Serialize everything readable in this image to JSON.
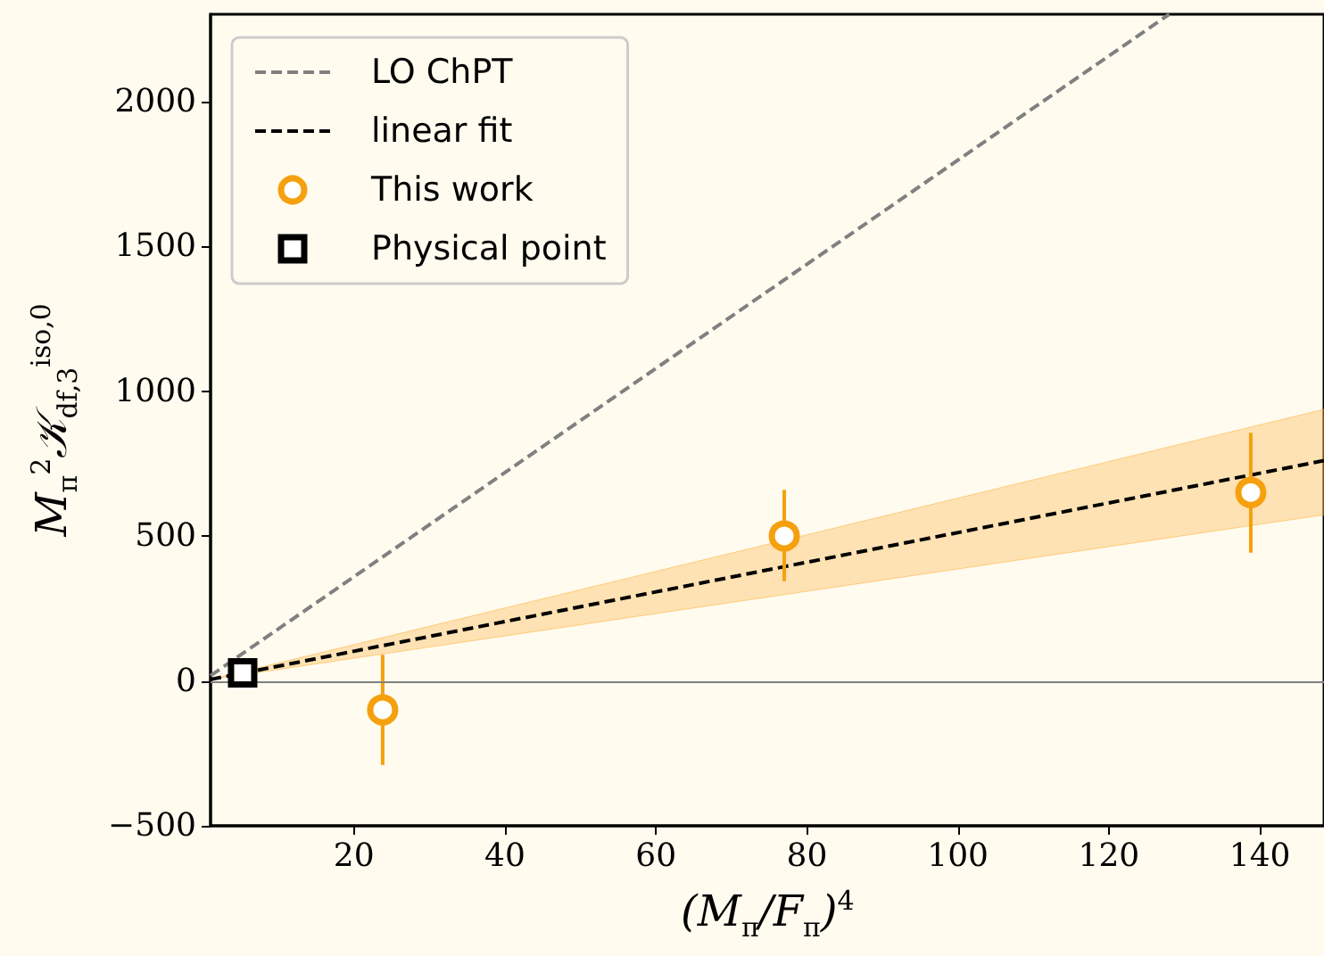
{
  "chart_data": {
    "type": "line",
    "xlabel": "(M$_{π}$/F$_{π}$)$^{4}$",
    "ylabel": "M$_{π}$$^{2}$𝒦$_{df,3}$$^{iso,0}$",
    "xlim": [
      1,
      148.5
    ],
    "xticks": [
      20,
      40,
      60,
      80,
      100,
      120,
      140
    ],
    "ylim": [
      -500,
      2300
    ],
    "yticks": [
      -500,
      0,
      500,
      1000,
      1500,
      2000
    ],
    "grid": false,
    "legend": "top left",
    "ref_lines": [
      {
        "axis": "y",
        "value": 0,
        "color": "#808080"
      }
    ],
    "series": [
      {
        "name": "LO ChPT",
        "type": "line",
        "color": "#808080",
        "x": [
          1,
          128
        ],
        "values": [
          18,
          2300
        ],
        "line_style": "dashed",
        "marker": "none"
      },
      {
        "name": "linear fit",
        "type": "line",
        "color": "#000000",
        "x": [
          1,
          148.5
        ],
        "values": [
          5,
          760
        ],
        "lower": [
          5,
          573
        ],
        "upper": [
          5,
          937
        ],
        "line_style": "dashed",
        "marker": "none"
      },
      {
        "name": "This work",
        "type": "scatter",
        "color": "#f5a00f",
        "x": [
          23.8,
          77,
          138.8
        ],
        "values": [
          -100,
          500,
          650
        ],
        "errors": [
          [
            -290,
            90
          ],
          [
            344,
            659
          ],
          [
            442,
            856
          ]
        ],
        "marker": "circle"
      },
      {
        "name": "Physical point",
        "type": "scatter",
        "color": "#000000",
        "x": [
          5.25
        ],
        "values": [
          28
        ],
        "marker": "square"
      }
    ]
  }
}
